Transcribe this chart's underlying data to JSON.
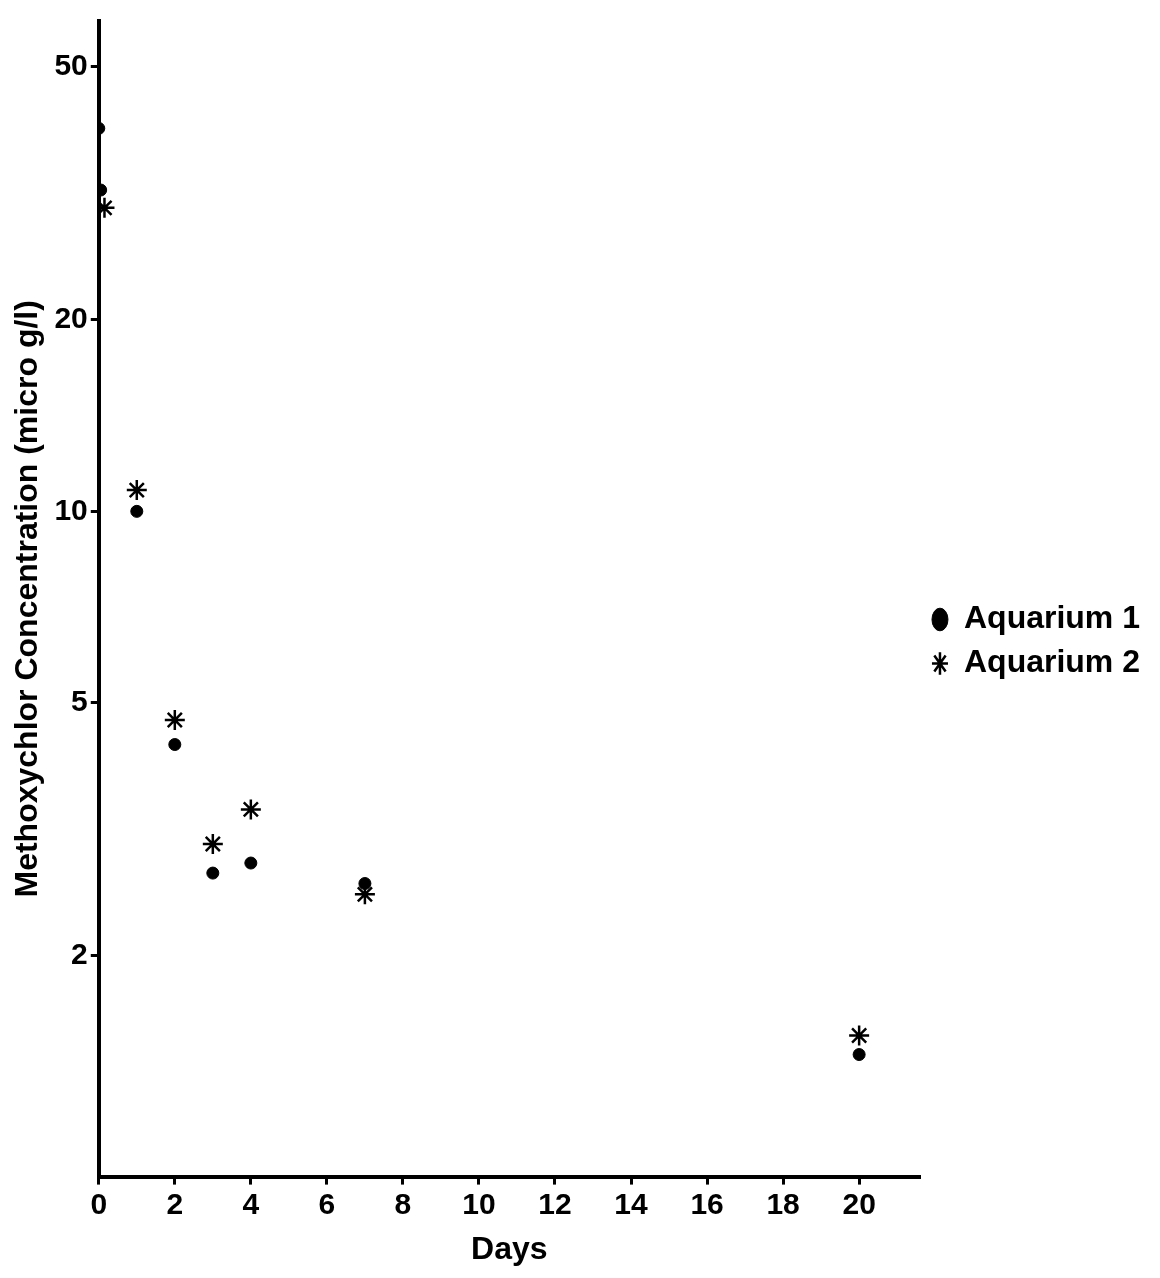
{
  "chart_data": {
    "type": "scatter",
    "xlabel": "Days",
    "ylabel": "Methoxychlor Concentration (micro g/l)",
    "series": [
      {
        "name": "Aquarium 1",
        "color": "#000000",
        "marker": "circle",
        "x": [
          0,
          0.05,
          1,
          2,
          3,
          4,
          7,
          20
        ],
        "values": [
          40,
          32,
          10,
          4.3,
          2.7,
          2.8,
          2.6,
          1.4
        ]
      },
      {
        "name": "Aquarium 2",
        "color": "#000000",
        "marker": "cross",
        "x": [
          0.15,
          1,
          2,
          3,
          4,
          7,
          20
        ],
        "values": [
          30,
          10.8,
          4.7,
          3.0,
          3.4,
          2.5,
          1.5
        ]
      }
    ],
    "xlim": [
      0,
      21.6
    ],
    "xticks": [
      0,
      2,
      4,
      6,
      8,
      10,
      12,
      14,
      16,
      18,
      20
    ],
    "ylim": [
      0.9,
      59
    ],
    "yticks": [
      2,
      5,
      10,
      20,
      50
    ],
    "log": "y",
    "grid": false,
    "legend": "right"
  }
}
